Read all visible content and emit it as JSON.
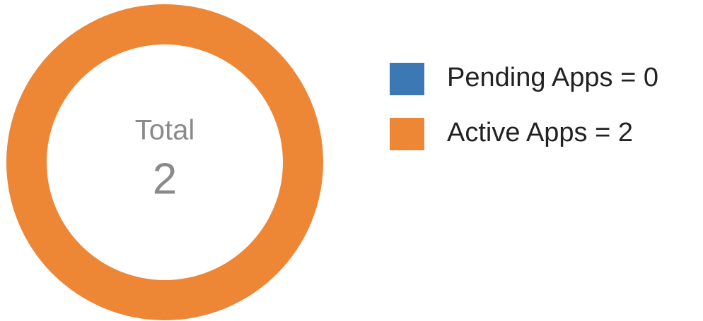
{
  "chart_data": {
    "type": "donut",
    "categories": [
      "Pending Apps = 0",
      "Active Apps = 2"
    ],
    "values": [
      0,
      2
    ],
    "colors": [
      "#3b78b4",
      "#ee8735"
    ],
    "center_label": "Total",
    "total": 2,
    "legend": "right"
  }
}
